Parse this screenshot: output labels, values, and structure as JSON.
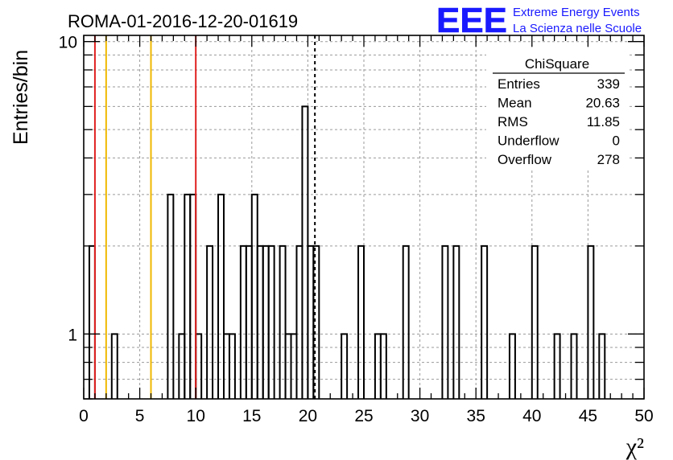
{
  "chart_data": {
    "type": "bar",
    "subtype": "step-histogram",
    "title": "ROMA-01-2016-12-20-01619",
    "xlabel": "χ²",
    "ylabel": "Entries/bin",
    "xlim": [
      0,
      50
    ],
    "ylim": [
      0.6,
      10.5
    ],
    "yscale": "log",
    "bin_width": 0.5,
    "x_ticks": [
      0,
      5,
      10,
      15,
      20,
      25,
      30,
      35,
      40,
      45,
      50
    ],
    "x_tick_labels": [
      "0",
      "5",
      "10",
      "15",
      "20",
      "25",
      "30",
      "35",
      "40",
      "45",
      "50"
    ],
    "y_ticks": [
      1,
      10
    ],
    "y_tick_labels": [
      "1",
      "10"
    ],
    "grid": true,
    "bins": [
      {
        "x": 0.5,
        "count": 2
      },
      {
        "x": 2.5,
        "count": 1
      },
      {
        "x": 7.5,
        "count": 3
      },
      {
        "x": 8.5,
        "count": 1
      },
      {
        "x": 9.0,
        "count": 3
      },
      {
        "x": 9.5,
        "count": 3
      },
      {
        "x": 10.0,
        "count": 1
      },
      {
        "x": 11.0,
        "count": 2
      },
      {
        "x": 12.0,
        "count": 3
      },
      {
        "x": 12.5,
        "count": 1
      },
      {
        "x": 13.0,
        "count": 1
      },
      {
        "x": 14.0,
        "count": 2
      },
      {
        "x": 14.5,
        "count": 2
      },
      {
        "x": 15.0,
        "count": 3
      },
      {
        "x": 15.5,
        "count": 2
      },
      {
        "x": 16.0,
        "count": 2
      },
      {
        "x": 16.5,
        "count": 2
      },
      {
        "x": 17.5,
        "count": 2
      },
      {
        "x": 18.0,
        "count": 1
      },
      {
        "x": 18.5,
        "count": 1
      },
      {
        "x": 19.0,
        "count": 2
      },
      {
        "x": 19.5,
        "count": 6
      },
      {
        "x": 20.0,
        "count": 2
      },
      {
        "x": 20.5,
        "count": 2
      },
      {
        "x": 23.0,
        "count": 1
      },
      {
        "x": 24.5,
        "count": 2
      },
      {
        "x": 26.0,
        "count": 1
      },
      {
        "x": 26.5,
        "count": 1
      },
      {
        "x": 28.5,
        "count": 2
      },
      {
        "x": 32.0,
        "count": 2
      },
      {
        "x": 33.0,
        "count": 2
      },
      {
        "x": 35.5,
        "count": 2
      },
      {
        "x": 38.0,
        "count": 1
      },
      {
        "x": 40.0,
        "count": 2
      },
      {
        "x": 42.0,
        "count": 1
      },
      {
        "x": 43.5,
        "count": 1
      },
      {
        "x": 45.0,
        "count": 2
      },
      {
        "x": 46.0,
        "count": 1
      }
    ],
    "vertical_lines": [
      {
        "x": 1,
        "color": "#e02020",
        "style": "solid"
      },
      {
        "x": 2,
        "color": "#f0b800",
        "style": "solid"
      },
      {
        "x": 6,
        "color": "#f0b800",
        "style": "solid"
      },
      {
        "x": 10,
        "color": "#e02020",
        "style": "solid"
      },
      {
        "x": 20.63,
        "color": "#000000",
        "style": "dashed"
      }
    ],
    "stats_box": {
      "title": "ChiSquare",
      "rows": [
        {
          "label": "Entries",
          "value": "339"
        },
        {
          "label": "Mean",
          "value": "20.63"
        },
        {
          "label": "RMS",
          "value": "11.85"
        },
        {
          "label": "Underflow",
          "value": "0"
        },
        {
          "label": "Overflow",
          "value": "278"
        }
      ]
    }
  },
  "logo": {
    "mark": "EEE",
    "line1": "Extreme Energy Events",
    "line2": "La Scienza nelle Scuole"
  },
  "colors": {
    "logo_blue": "#1a1aff",
    "limit_red": "#e02020",
    "limit_yellow": "#f0b800",
    "grid": "#9a9a9a"
  }
}
